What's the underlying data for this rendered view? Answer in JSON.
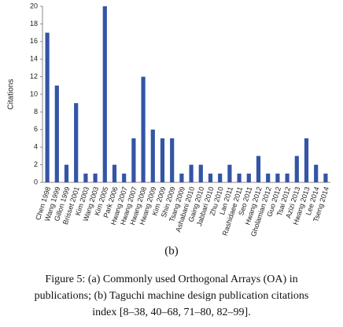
{
  "chart_data": {
    "type": "bar",
    "y_label": "Citations",
    "categories": [
      "Chen 1998",
      "Wang 1999",
      "Gillon 1999",
      "Brisset 2001",
      "Kim 2003",
      "Wang 2003",
      "Kim 2005",
      "Park 2006",
      "Hwang 2007",
      "Hwang 2007",
      "Hwang 2008",
      "Hwang 2009",
      "Kim 2009",
      "Shin 2009",
      "Tsang 2009",
      "Ashabani 2010",
      "Gaing 2010",
      "Jabbari 2010",
      "Zhu 2010",
      "Lan 2011",
      "Rashidaee 2011",
      "Seo 2011",
      "Hwang 2012",
      "Gholamian 2012",
      "Guo 2012",
      "Tsai 2012",
      "Azizi 2013",
      "Hwang 2013",
      "Lee 2014",
      "Tseng 2014"
    ],
    "values": [
      17,
      11,
      2,
      9,
      1,
      1,
      20,
      2,
      1,
      5,
      12,
      6,
      5,
      5,
      1,
      2,
      2,
      1,
      1,
      2,
      1,
      1,
      3,
      1,
      1,
      1,
      3,
      5,
      2,
      1
    ],
    "color": "#3355a5",
    "ylim": [
      0,
      20
    ],
    "yticks": [
      0,
      2,
      4,
      6,
      8,
      10,
      12,
      14,
      16,
      18,
      20
    ],
    "grid": false
  },
  "sublabel": "(b)",
  "caption": [
    "Figure 5: (a) Commonly used Orthogonal Arrays (OA) in",
    "publications; (b) Taguchi machine design publication citations",
    "index [8–38, 40–68, 71–80, 82–99]."
  ]
}
